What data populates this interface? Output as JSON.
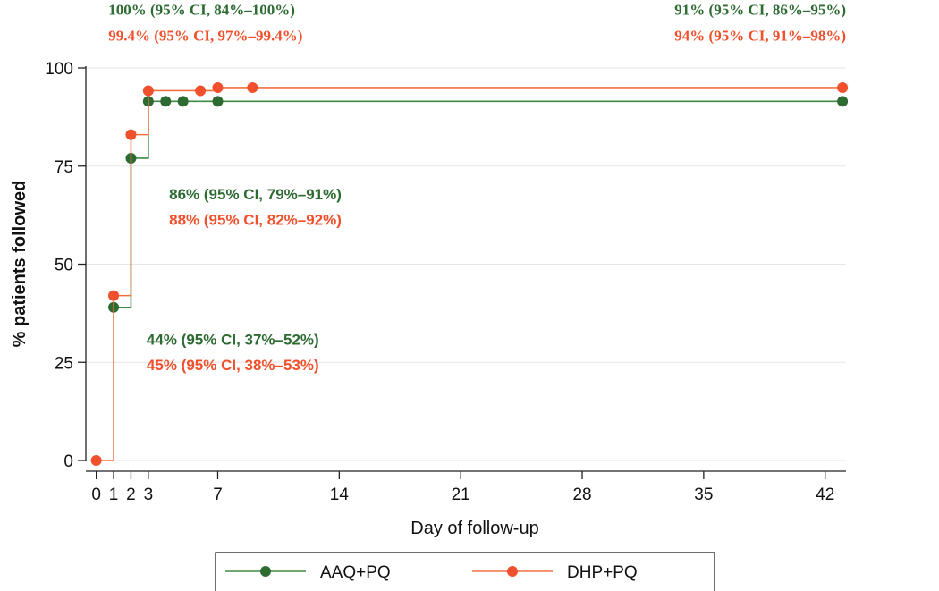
{
  "chart_data": {
    "type": "line",
    "xlabel": "Day of follow-up",
    "ylabel": "% patients followed",
    "xlim": [
      -0.6,
      43.2
    ],
    "ylim": [
      0,
      100
    ],
    "x_ticks": [
      0,
      1,
      2,
      3,
      7,
      14,
      21,
      28,
      35,
      42
    ],
    "y_ticks": [
      0,
      25,
      50,
      75,
      100
    ],
    "grid": "horizontal",
    "legend_position": "bottom",
    "series": [
      {
        "name": "AAQ+PQ",
        "color": "#2e6b33",
        "line_color": "#3e8a44",
        "points": [
          [
            1,
            39
          ],
          [
            2,
            77
          ],
          [
            3,
            91.5
          ],
          [
            4,
            91.5
          ],
          [
            5,
            91.5
          ],
          [
            7,
            91.5
          ],
          [
            43,
            91.5
          ]
        ]
      },
      {
        "name": "DHP+PQ",
        "color": "#f0502b",
        "line_color": "#f07040",
        "points": [
          [
            0,
            0
          ],
          [
            1,
            42
          ],
          [
            2,
            83
          ],
          [
            3,
            94.2
          ],
          [
            6,
            94.2
          ],
          [
            7,
            95
          ],
          [
            9,
            95
          ],
          [
            43,
            95
          ]
        ]
      }
    ],
    "annotations": [
      {
        "text": "100% (95% CI, 84%–100%)",
        "color": "#2e6b33",
        "font": "serif",
        "anchor": "start",
        "x": 0.7,
        "y": 113.5
      },
      {
        "text": "99.4% (95% CI, 97%–99.4%)",
        "color": "#f0502b",
        "font": "serif",
        "anchor": "start",
        "x": 0.7,
        "y": 107.0
      },
      {
        "text": "91% (95% CI, 86%–95%)",
        "color": "#2e6b33",
        "font": "serif",
        "anchor": "end",
        "x": 43.2,
        "y": 113.5
      },
      {
        "text": "94% (95% CI, 91%–98%)",
        "color": "#f0502b",
        "font": "serif",
        "anchor": "end",
        "x": 43.2,
        "y": 107.0
      },
      {
        "text": "86% (95% CI, 79%–91%)",
        "color": "#2e6b33",
        "font": "sans",
        "anchor": "start",
        "x": 4.2,
        "y": 66.5
      },
      {
        "text": "88% (95% CI, 82%–92%)",
        "color": "#f0502b",
        "font": "sans",
        "anchor": "start",
        "x": 4.2,
        "y": 60.0
      },
      {
        "text": "44% (95% CI, 37%–52%)",
        "color": "#2e6b33",
        "font": "sans",
        "anchor": "start",
        "x": 2.9,
        "y": 29.5
      },
      {
        "text": "45% (95% CI, 38%–53%)",
        "color": "#f0502b",
        "font": "sans",
        "anchor": "start",
        "x": 2.9,
        "y": 23.0
      }
    ]
  }
}
